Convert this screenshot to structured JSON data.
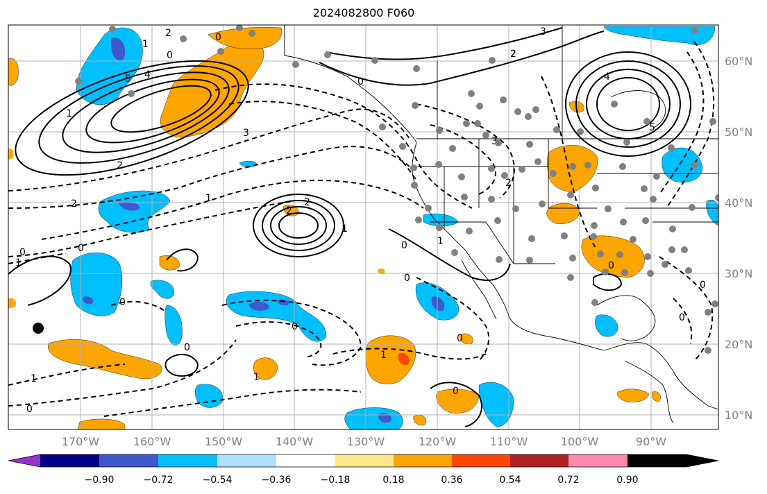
{
  "title": "2024082800 F060",
  "lon_labels": [
    "170°W",
    "160°W",
    "150°W",
    "140°W",
    "130°W",
    "120°W",
    "110°W",
    "100°W",
    "90°W"
  ],
  "lat_labels": [
    "60°N",
    "50°N",
    "40°N",
    "30°N",
    "20°N",
    "10°N"
  ],
  "colorbar": {
    "ticks": [
      "−0.90",
      "−0.72",
      "−0.54",
      "−0.36",
      "−0.18",
      "0.18",
      "0.36",
      "0.54",
      "0.72",
      "0.90"
    ],
    "colors": [
      "#9932cc",
      "#00008b",
      "#3c5acd",
      "#00bfff",
      "#b0e0ff",
      "#ffffff",
      "#ffe88a",
      "#ffa500",
      "#ff4500",
      "#b22222",
      "#ff88b0"
    ]
  },
  "contour_labels": [
    "2",
    "1",
    "0",
    "4",
    "5",
    "2",
    "3",
    "0",
    "2",
    "3",
    "4",
    "5",
    "1",
    "2",
    "0",
    "1",
    "2",
    "2",
    "3",
    "2",
    "1",
    "0",
    "0",
    "0",
    "0",
    "1",
    "0",
    "0",
    "1",
    "0",
    "0",
    "1",
    "1",
    "0",
    "0",
    "0",
    "0",
    "1",
    "0"
  ]
}
